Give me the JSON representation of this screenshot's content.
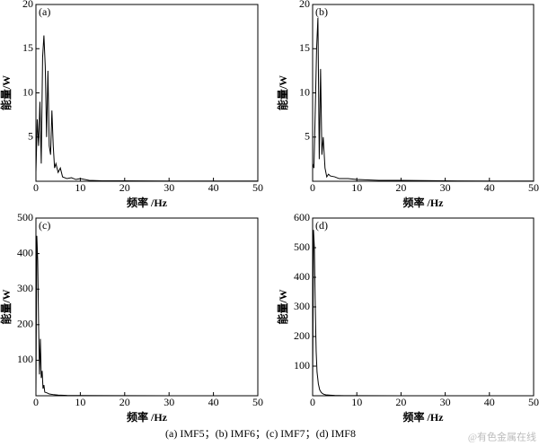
{
  "chart_data": [
    {
      "type": "line",
      "label": "(a)",
      "ylabel": "能量/W",
      "xlabel": "频率 /Hz",
      "color": "#000000",
      "x": [
        0,
        0.3,
        0.6,
        0.9,
        1.2,
        1.5,
        1.8,
        2.1,
        2.4,
        2.7,
        3.0,
        3.3,
        3.6,
        3.9,
        4.2,
        4.5,
        5,
        5.5,
        6,
        7,
        8,
        9,
        10,
        12,
        15,
        20,
        30,
        40,
        50
      ],
      "values": [
        1,
        7,
        4,
        9,
        2,
        14,
        16.5,
        13,
        5,
        12.5,
        4,
        3,
        8,
        4,
        1.5,
        2,
        1,
        1.5,
        0.5,
        0.3,
        0.4,
        0.2,
        0.3,
        0.1,
        0.05,
        0.05,
        0.02,
        0.02,
        0.02
      ],
      "xlim": [
        0,
        50
      ],
      "xticks": [
        0,
        10,
        20,
        30,
        40,
        50
      ],
      "ylim": [
        0,
        20
      ],
      "yticks": [
        5,
        10,
        15,
        20
      ]
    },
    {
      "type": "line",
      "label": "(b)",
      "ylabel": "能量/W",
      "xlabel": "频率 /Hz",
      "color": "#000000",
      "x": [
        0,
        0.3,
        0.6,
        0.9,
        1.2,
        1.5,
        1.8,
        2.1,
        2.4,
        2.8,
        3.2,
        3.6,
        4,
        5,
        6,
        8,
        10,
        15,
        20,
        30,
        40,
        50
      ],
      "values": [
        2,
        1.5,
        8,
        15,
        18.5,
        2.5,
        12.7,
        3,
        5,
        1.5,
        0.5,
        0.8,
        0.6,
        0.5,
        0.3,
        0.3,
        0.2,
        0.1,
        0.1,
        0.05,
        0.02,
        0.02
      ],
      "xlim": [
        0,
        50
      ],
      "xticks": [
        0,
        10,
        20,
        30,
        40,
        50
      ],
      "ylim": [
        0,
        20
      ],
      "yticks": [
        5,
        10,
        15,
        20
      ]
    },
    {
      "type": "line",
      "label": "(c)",
      "ylabel": "能量/W",
      "xlabel": "频率 /Hz",
      "color": "#000000",
      "x": [
        0,
        0.2,
        0.4,
        0.6,
        0.8,
        1,
        1.2,
        1.4,
        1.6,
        1.8,
        2,
        2.5,
        3,
        4,
        5,
        7,
        10,
        20,
        30,
        40,
        50
      ],
      "values": [
        10,
        450,
        380,
        200,
        60,
        160,
        50,
        70,
        20,
        30,
        10,
        8,
        5,
        3,
        2,
        1,
        0.5,
        0.2,
        0.1,
        0.1,
        0.1
      ],
      "xlim": [
        0,
        50
      ],
      "xticks": [
        0,
        10,
        20,
        30,
        40,
        50
      ],
      "ylim": [
        0,
        500
      ],
      "yticks": [
        100,
        200,
        300,
        400,
        500
      ]
    },
    {
      "type": "line",
      "label": "(d)",
      "ylabel": "能量/W",
      "xlabel": "频率 /Hz",
      "color": "#000000",
      "x": [
        0,
        0.2,
        0.4,
        0.6,
        0.8,
        1,
        1.3,
        1.6,
        2,
        2.5,
        3,
        4,
        5,
        7,
        10,
        20,
        30,
        40,
        50
      ],
      "values": [
        20,
        560,
        500,
        300,
        150,
        80,
        40,
        20,
        10,
        5,
        3,
        2,
        1,
        0.5,
        0.3,
        0.1,
        0.1,
        0.1,
        0.1
      ],
      "xlim": [
        0,
        50
      ],
      "xticks": [
        0,
        10,
        20,
        30,
        40,
        50
      ],
      "ylim": [
        0,
        600
      ],
      "yticks": [
        100,
        200,
        300,
        400,
        500,
        600
      ]
    }
  ],
  "caption": "(a) IMF5；(b) IMF6；(c) IMF7；(d) IMF8",
  "watermark": "@有色金属在线"
}
